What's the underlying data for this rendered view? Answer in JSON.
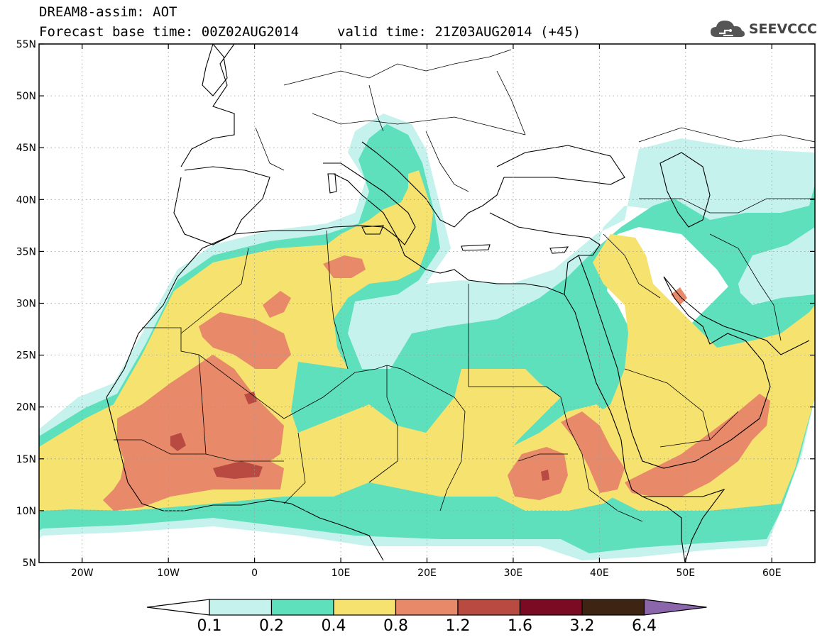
{
  "title": {
    "line1": "DREAM8-assim: AOT",
    "base_time": "Forecast base time: 00Z02AUG2014",
    "valid_time": "valid time: 21Z03AUG2014 (+45)"
  },
  "logo": {
    "text": "SEEVCCC",
    "icon": "cloud-icon"
  },
  "map": {
    "variable": "AOT",
    "region": {
      "lon_min": -25,
      "lon_max": 65,
      "lat_min": 5,
      "lat_max": 55
    },
    "x_ticks": [
      "20W",
      "10W",
      "0",
      "10E",
      "20E",
      "30E",
      "40E",
      "50E",
      "60E"
    ],
    "x_tick_values": [
      -20,
      -10,
      0,
      10,
      20,
      30,
      40,
      50,
      60
    ],
    "y_ticks": [
      "5N",
      "10N",
      "15N",
      "20N",
      "25N",
      "30N",
      "35N",
      "40N",
      "45N",
      "50N",
      "55N"
    ],
    "y_tick_values": [
      5,
      10,
      15,
      20,
      25,
      30,
      35,
      40,
      45,
      50,
      55
    ],
    "grid": "dotted"
  },
  "colorbar": {
    "labels": [
      "0.1",
      "0.2",
      "0.4",
      "0.8",
      "1.2",
      "1.6",
      "3.2",
      "6.4"
    ],
    "colors": [
      "#c5f2ec",
      "#5ee0bc",
      "#f5e26f",
      "#e8896a",
      "#b84a42",
      "#7a0b22",
      "#3d2413",
      "#8c66aa"
    ],
    "under_color": "#ffffff"
  }
}
